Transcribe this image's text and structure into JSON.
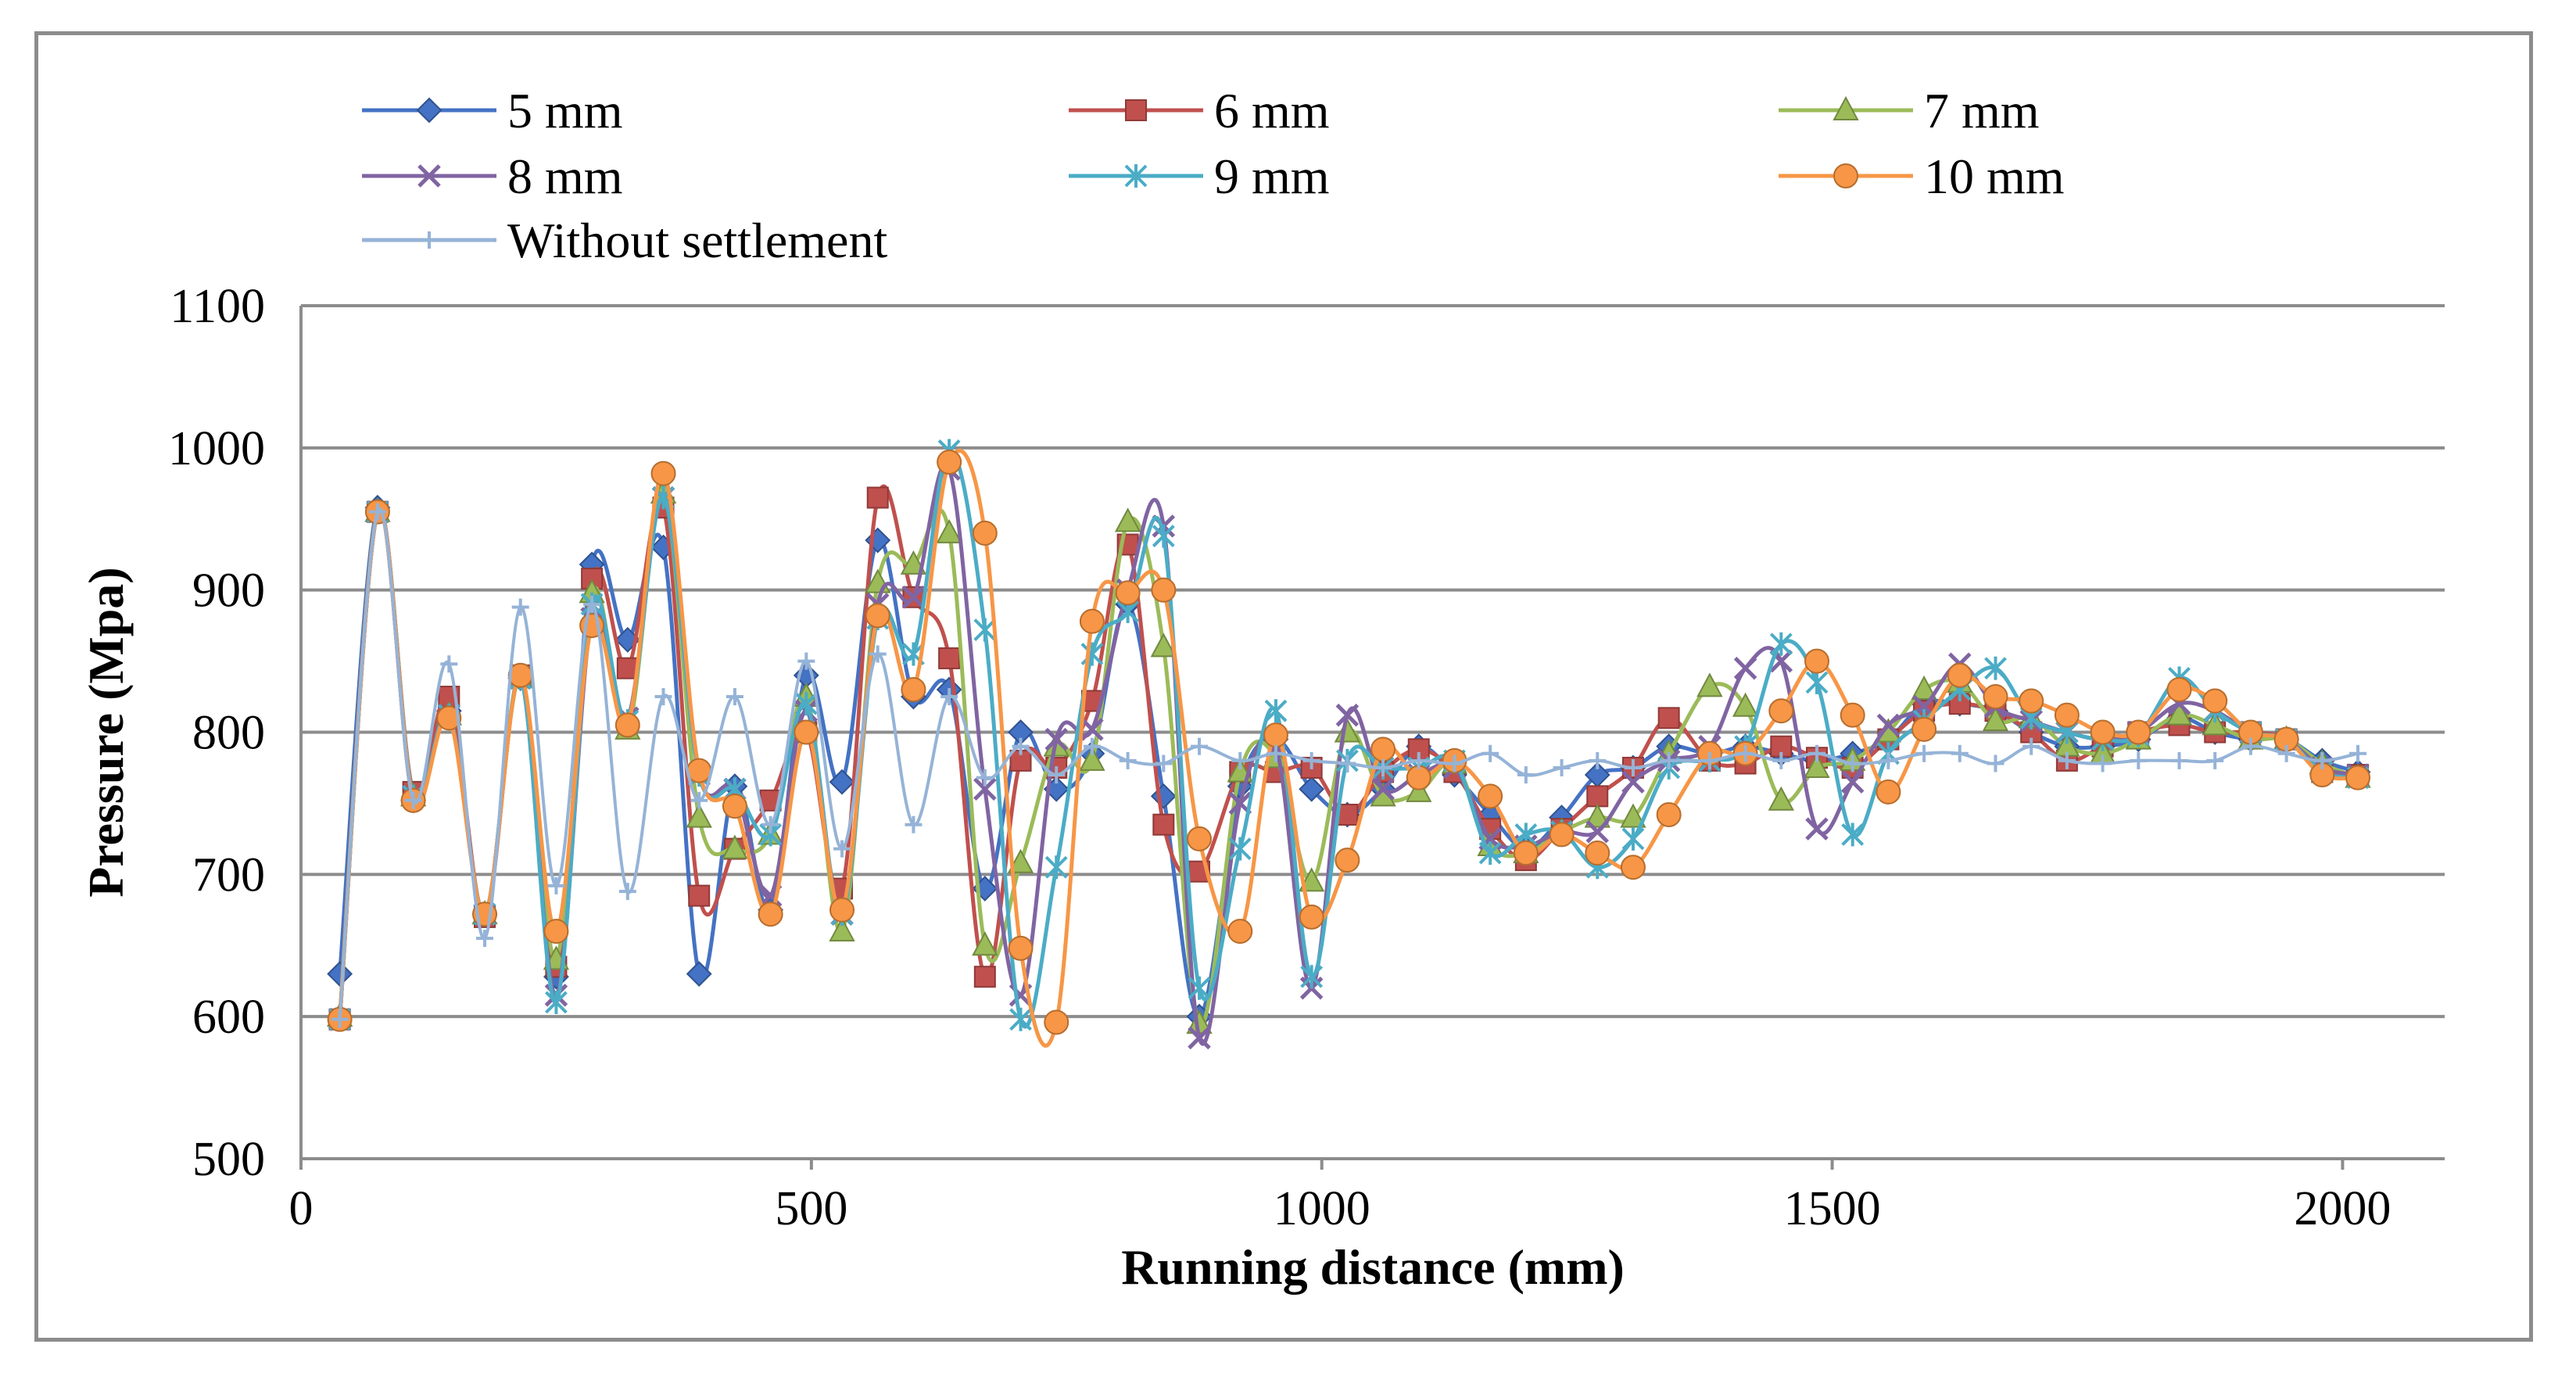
{
  "chart_data": {
    "type": "line",
    "title": "",
    "xlabel": "Running distance (mm)",
    "ylabel": "Pressure (Mpa)",
    "xlim": [
      0,
      2100
    ],
    "ylim": [
      500,
      1100
    ],
    "xticks": [
      0,
      500,
      1000,
      1500,
      2000
    ],
    "yticks": [
      500,
      600,
      700,
      800,
      900,
      1000,
      1100
    ],
    "grid": "horizontal",
    "legend_position": "top",
    "x": [
      38,
      75,
      110,
      145,
      180,
      215,
      250,
      285,
      320,
      355,
      390,
      425,
      460,
      495,
      530,
      565,
      600,
      635,
      670,
      705,
      740,
      775,
      810,
      845,
      880,
      920,
      955,
      990,
      1025,
      1060,
      1095,
      1130,
      1165,
      1200,
      1235,
      1270,
      1305,
      1340,
      1380,
      1415,
      1450,
      1485,
      1520,
      1555,
      1590,
      1625,
      1660,
      1695,
      1730,
      1765,
      1800,
      1840,
      1875,
      1910,
      1945,
      1980,
      2015
    ],
    "series": [
      {
        "name": "5 mm",
        "color": "#4472c4",
        "marker": "diamond",
        "values": [
          630,
          958,
          752,
          815,
          672,
          838,
          628,
          918,
          865,
          930,
          630,
          762,
          675,
          840,
          765,
          935,
          825,
          830,
          690,
          800,
          760,
          785,
          890,
          755,
          600,
          762,
          795,
          760,
          742,
          760,
          790,
          770,
          742,
          718,
          740,
          770,
          775,
          790,
          785,
          790,
          785,
          780,
          785,
          795,
          820,
          820,
          815,
          800,
          790,
          790,
          795,
          810,
          800,
          795,
          795,
          780,
          772
        ]
      },
      {
        "name": "6 mm",
        "color": "#c0504d",
        "marker": "square",
        "values": [
          598,
          955,
          758,
          825,
          670,
          840,
          635,
          908,
          845,
          958,
          685,
          718,
          752,
          800,
          690,
          965,
          895,
          852,
          628,
          780,
          775,
          822,
          932,
          735,
          702,
          772,
          772,
          775,
          742,
          772,
          788,
          772,
          732,
          710,
          732,
          755,
          775,
          810,
          780,
          778,
          790,
          782,
          775,
          795,
          815,
          820,
          815,
          800,
          780,
          790,
          800,
          805,
          800,
          800,
          795,
          772,
          770
        ]
      },
      {
        "name": "7 mm",
        "color": "#9bbb59",
        "marker": "triangle",
        "values": [
          600,
          955,
          755,
          812,
          672,
          838,
          640,
          898,
          802,
          968,
          740,
          718,
          728,
          825,
          660,
          905,
          918,
          940,
          650,
          708,
          790,
          780,
          948,
          860,
          595,
          772,
          782,
          695,
          800,
          755,
          758,
          778,
          720,
          715,
          730,
          740,
          740,
          785,
          832,
          818,
          752,
          775,
          780,
          800,
          830,
          835,
          808,
          810,
          790,
          785,
          795,
          812,
          805,
          795,
          795,
          778,
          768
        ]
      },
      {
        "name": "8 mm",
        "color": "#8064a2",
        "marker": "x",
        "values": [
          598,
          955,
          755,
          812,
          672,
          838,
          615,
          880,
          810,
          965,
          770,
          760,
          685,
          815,
          672,
          890,
          895,
          985,
          760,
          615,
          795,
          802,
          900,
          945,
          585,
          750,
          790,
          620,
          812,
          760,
          770,
          775,
          725,
          720,
          730,
          730,
          765,
          780,
          790,
          845,
          850,
          732,
          765,
          805,
          818,
          848,
          818,
          808,
          800,
          795,
          800,
          820,
          815,
          800,
          795,
          775,
          770
        ]
      },
      {
        "name": "9 mm",
        "color": "#4bacc6",
        "marker": "asterisk",
        "values": [
          598,
          955,
          755,
          812,
          672,
          838,
          610,
          890,
          808,
          965,
          770,
          760,
          728,
          820,
          672,
          880,
          855,
          998,
          872,
          598,
          705,
          855,
          885,
          938,
          620,
          718,
          815,
          628,
          780,
          775,
          775,
          780,
          715,
          728,
          730,
          705,
          725,
          775,
          780,
          790,
          862,
          835,
          728,
          785,
          808,
          830,
          845,
          810,
          800,
          795,
          798,
          838,
          815,
          800,
          795,
          772,
          768
        ]
      },
      {
        "name": "10 mm",
        "color": "#f79646",
        "marker": "circle",
        "values": [
          598,
          955,
          752,
          810,
          672,
          840,
          660,
          875,
          805,
          982,
          773,
          748,
          672,
          800,
          675,
          882,
          830,
          990,
          940,
          648,
          596,
          878,
          898,
          900,
          725,
          660,
          798,
          670,
          710,
          788,
          768,
          780,
          755,
          715,
          728,
          715,
          705,
          742,
          785,
          785,
          815,
          850,
          812,
          758,
          802,
          840,
          825,
          822,
          812,
          800,
          800,
          830,
          822,
          800,
          795,
          770,
          768
        ]
      },
      {
        "name": "Without settlement",
        "color": "#95b3d7",
        "marker": "plus",
        "values": [
          598,
          955,
          752,
          848,
          655,
          888,
          692,
          890,
          688,
          825,
          752,
          825,
          735,
          850,
          718,
          855,
          735,
          825,
          768,
          790,
          770,
          790,
          780,
          778,
          790,
          780,
          785,
          780,
          778,
          775,
          780,
          778,
          785,
          770,
          775,
          780,
          775,
          780,
          780,
          785,
          780,
          785,
          778,
          780,
          785,
          785,
          778,
          790,
          780,
          778,
          780,
          780,
          780,
          790,
          785,
          780,
          785
        ]
      }
    ]
  }
}
